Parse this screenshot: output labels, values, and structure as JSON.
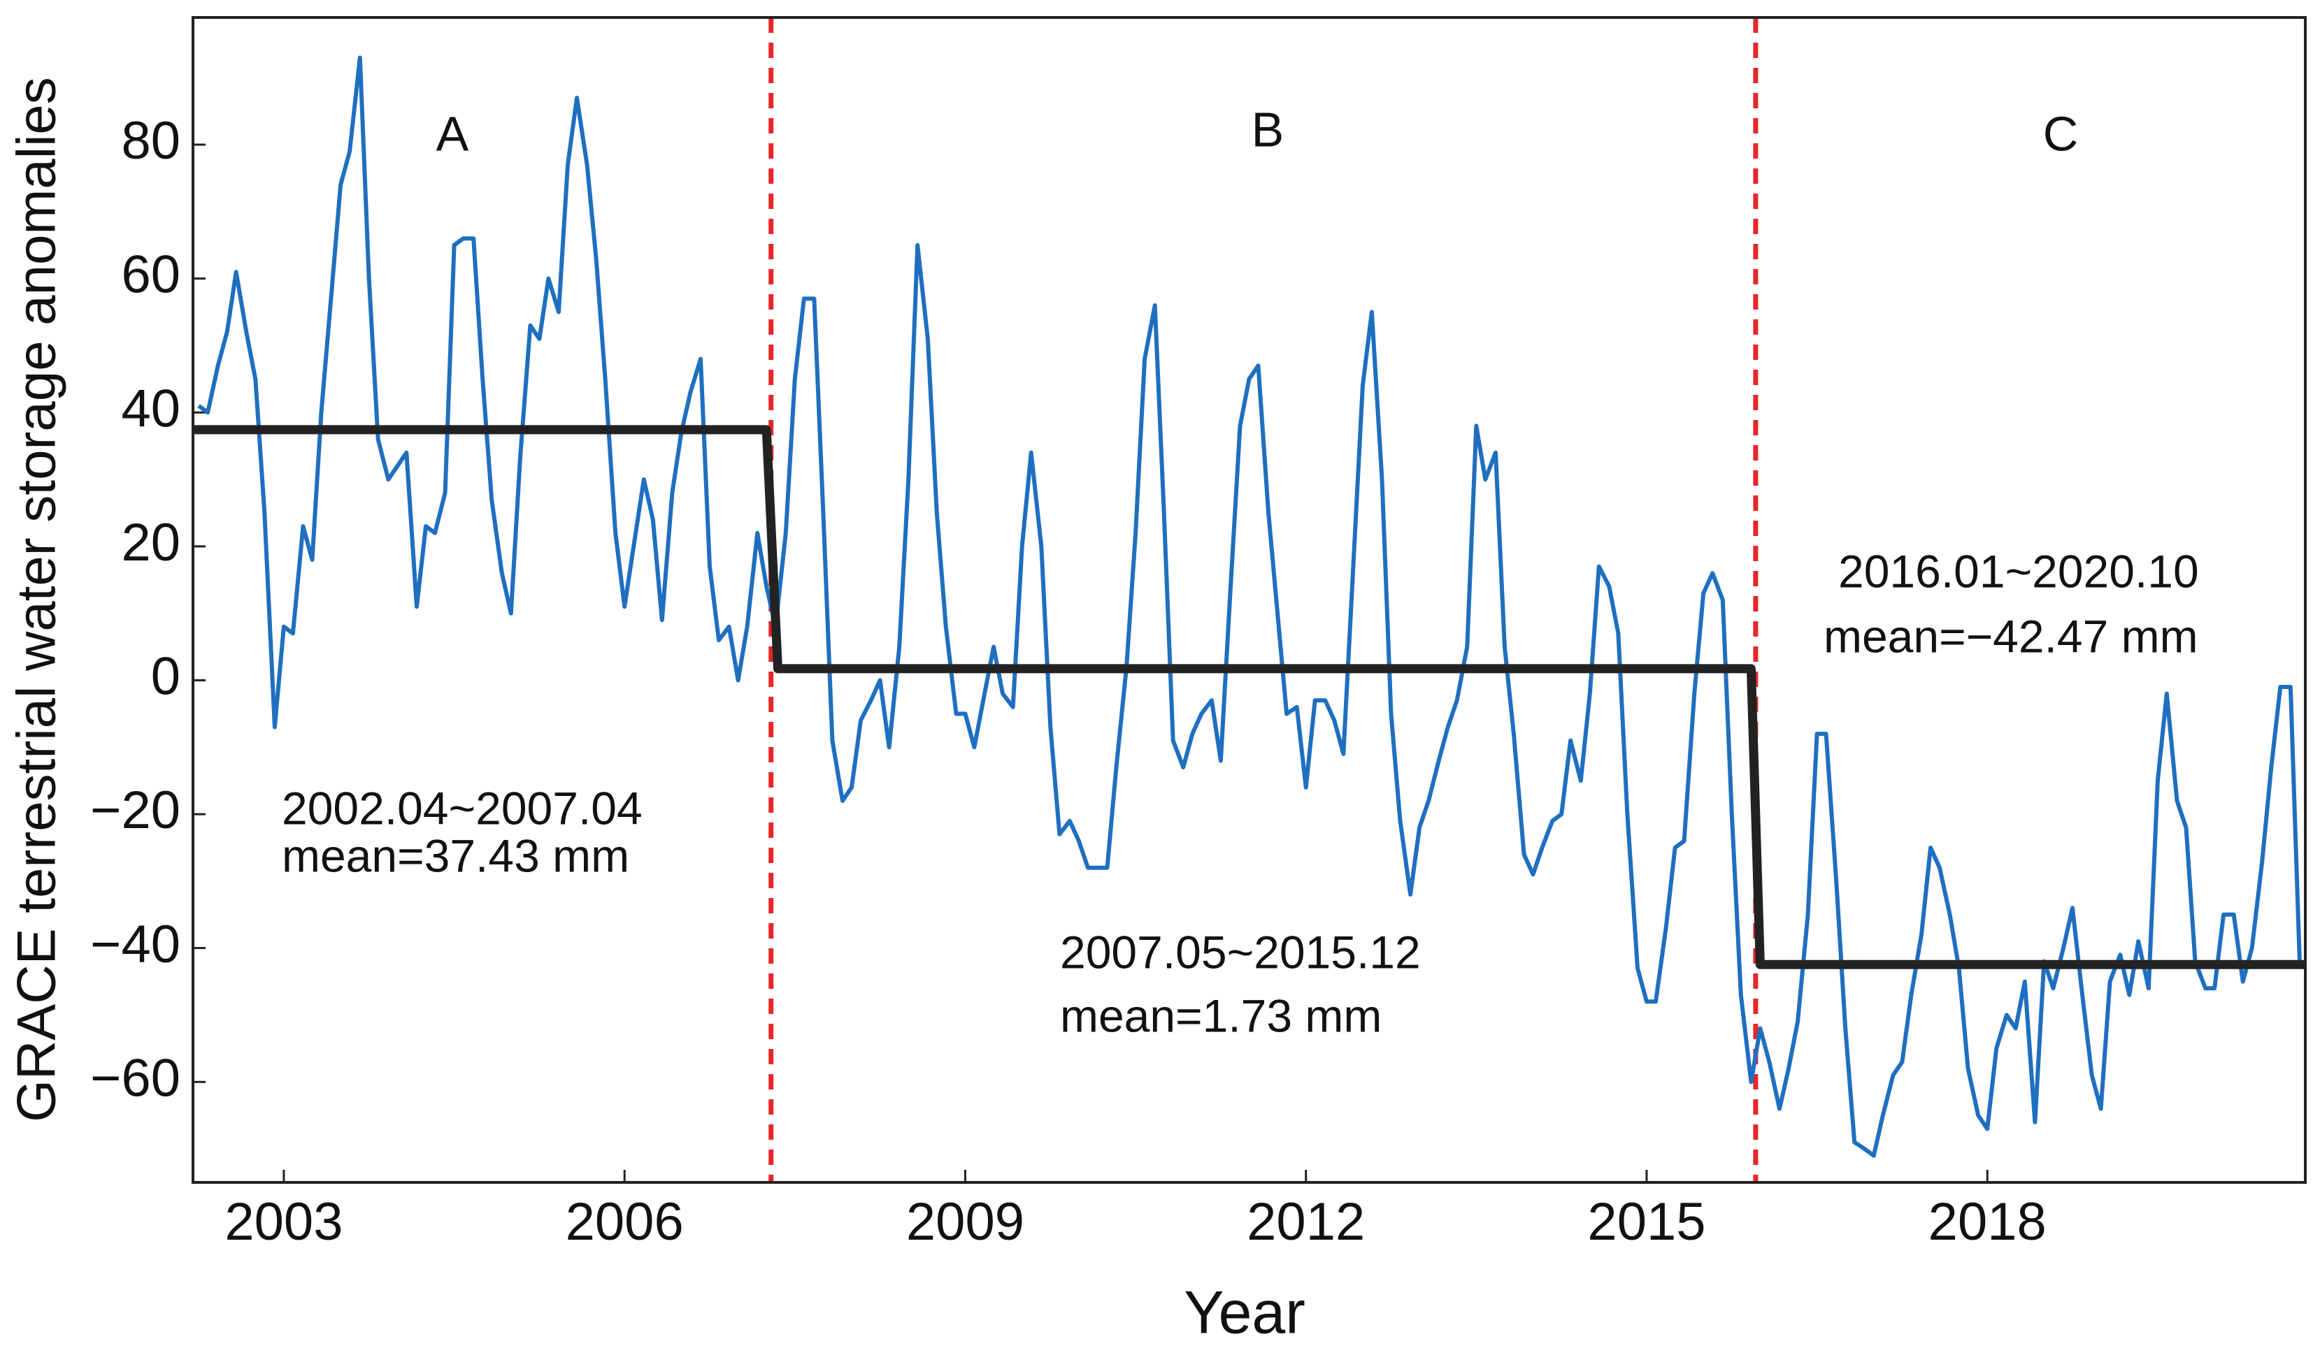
{
  "chart_data": {
    "type": "line",
    "xlabel": "Year",
    "ylabel": "GRACE terrestrial water storage anomalies",
    "xlim": [
      2002.2,
      2020.8
    ],
    "ylim": [
      -75,
      99
    ],
    "xticks": [
      2003,
      2006,
      2009,
      2012,
      2015,
      2018
    ],
    "yticks": [
      {
        "value": -60,
        "label": "−60"
      },
      {
        "value": -40,
        "label": "−40"
      },
      {
        "value": -20,
        "label": "−20"
      },
      0,
      20,
      40,
      60,
      80
    ],
    "annotations": [
      "A",
      "B",
      "C",
      "2002.04~2007.04",
      "mean=37.43 mm",
      "2007.05~2015.12",
      "mean=1.73 mm",
      "2016.01~2020.10",
      "mean=−42.47 mm"
    ],
    "vlines": {
      "color": "#e8262a",
      "x": [
        2007.29,
        2015.96
      ]
    },
    "series": [
      {
        "color": "#1f6fc0",
        "x": [
          2002.25,
          2002.33,
          2002.42,
          2002.5,
          2002.58,
          2002.67,
          2002.75,
          2002.83,
          2002.92,
          2003.0,
          2003.08,
          2003.17,
          2003.25,
          2003.33,
          2003.42,
          2003.5,
          2003.58,
          2003.67,
          2003.75,
          2003.83,
          2003.92,
          2004.0,
          2004.08,
          2004.17,
          2004.25,
          2004.33,
          2004.42,
          2004.5,
          2004.58,
          2004.67,
          2004.75,
          2004.83,
          2004.92,
          2005.0,
          2005.08,
          2005.17,
          2005.25,
          2005.33,
          2005.42,
          2005.5,
          2005.58,
          2005.67,
          2005.75,
          2005.83,
          2005.92,
          2006.0,
          2006.08,
          2006.17,
          2006.25,
          2006.33,
          2006.42,
          2006.5,
          2006.58,
          2006.67,
          2006.75,
          2006.83,
          2006.92,
          2007.0,
          2007.08,
          2007.17,
          2007.25,
          2007.33,
          2007.42,
          2007.5,
          2007.58,
          2007.67,
          2007.75,
          2007.83,
          2007.92,
          2008.0,
          2008.08,
          2008.17,
          2008.25,
          2008.33,
          2008.42,
          2008.5,
          2008.58,
          2008.67,
          2008.75,
          2008.83,
          2008.92,
          2009.0,
          2009.08,
          2009.17,
          2009.25,
          2009.33,
          2009.42,
          2009.5,
          2009.58,
          2009.67,
          2009.75,
          2009.83,
          2009.92,
          2010.0,
          2010.08,
          2010.17,
          2010.25,
          2010.33,
          2010.42,
          2010.5,
          2010.58,
          2010.67,
          2010.75,
          2010.83,
          2010.92,
          2011.0,
          2011.08,
          2011.17,
          2011.25,
          2011.33,
          2011.42,
          2011.5,
          2011.58,
          2011.67,
          2011.75,
          2011.83,
          2011.92,
          2012.0,
          2012.08,
          2012.17,
          2012.25,
          2012.33,
          2012.42,
          2012.5,
          2012.58,
          2012.67,
          2012.75,
          2012.83,
          2012.92,
          2013.0,
          2013.08,
          2013.17,
          2013.25,
          2013.33,
          2013.42,
          2013.5,
          2013.58,
          2013.67,
          2013.75,
          2013.83,
          2013.92,
          2014.0,
          2014.08,
          2014.17,
          2014.25,
          2014.33,
          2014.42,
          2014.5,
          2014.58,
          2014.67,
          2014.75,
          2014.83,
          2014.92,
          2015.0,
          2015.08,
          2015.17,
          2015.25,
          2015.33,
          2015.42,
          2015.5,
          2015.58,
          2015.67,
          2015.75,
          2015.83,
          2015.92,
          2016.0,
          2016.08,
          2016.17,
          2016.25,
          2016.33,
          2016.42,
          2016.5,
          2016.58,
          2016.67,
          2016.75,
          2016.83,
          2016.92,
          2017.0,
          2017.08,
          2017.17,
          2017.25,
          2017.33,
          2017.42,
          2017.5,
          2017.58,
          2017.67,
          2017.75,
          2017.83,
          2017.92,
          2018.0,
          2018.08,
          2018.17,
          2018.25,
          2018.33,
          2018.42,
          2018.5,
          2018.58,
          2018.67,
          2018.75,
          2018.83,
          2018.92,
          2019.0,
          2019.08,
          2019.17,
          2019.25,
          2019.33,
          2019.42,
          2019.5,
          2019.58,
          2019.67,
          2019.75,
          2019.83,
          2019.92,
          2020.0,
          2020.08,
          2020.17,
          2020.25,
          2020.33,
          2020.42,
          2020.5,
          2020.58,
          2020.67,
          2020.75
        ],
        "values": [
          41,
          40,
          47,
          52,
          61,
          52,
          45,
          25,
          -7,
          8,
          7,
          23,
          18,
          40,
          58,
          74,
          79,
          93,
          60,
          36,
          30,
          32,
          34,
          11,
          23,
          22,
          28,
          65,
          66,
          66,
          45,
          27,
          16,
          10,
          33,
          53,
          51,
          60,
          55,
          77,
          87,
          77,
          63,
          45,
          22,
          11,
          20,
          30,
          24,
          9,
          28,
          37,
          43,
          48,
          17,
          6,
          8,
          0,
          8,
          22,
          14,
          8,
          22,
          45,
          57,
          57,
          25,
          -9,
          -18,
          -16,
          -6,
          -3,
          0,
          -10,
          5,
          30,
          65,
          51,
          25,
          8,
          -5,
          -5,
          -10,
          -2,
          5,
          -2,
          -4,
          20,
          34,
          20,
          -7,
          -23,
          -21,
          -24,
          -28,
          -28,
          -28,
          -13,
          2,
          22,
          48,
          56,
          25,
          -9,
          -13,
          -8,
          -5,
          -3,
          -12,
          12,
          38,
          45,
          47,
          25,
          10,
          -5,
          -4,
          -16,
          -3,
          -3,
          -6,
          -11,
          18,
          44,
          55,
          30,
          -5,
          -21,
          -32,
          -22,
          -18,
          -12,
          -7,
          -3,
          5,
          38,
          30,
          34,
          5,
          -8,
          -26,
          -29,
          -25,
          -21,
          -20,
          -9,
          -15,
          -2,
          17,
          14,
          7,
          -20,
          -43,
          -48,
          -48,
          -37,
          -25,
          -24,
          -2,
          13,
          16,
          12,
          -20,
          -47,
          -60,
          -52,
          -57,
          -64,
          -58,
          -51,
          -35,
          -8,
          -8,
          -30,
          -52,
          -69,
          -70,
          -71,
          -65,
          -59,
          -57,
          -47,
          -38,
          -25,
          -28,
          -35,
          -43,
          -58,
          -65,
          -67,
          -55,
          -50,
          -52,
          -45,
          -66,
          -42,
          -46,
          -40,
          -34,
          -46,
          -59,
          -64,
          -45,
          -41,
          -47,
          -39,
          -46,
          -15,
          -2,
          -18,
          -22,
          -42,
          -46,
          -46,
          -35,
          -35,
          -45,
          -40,
          -27,
          -13,
          -1,
          -1,
          -42
        ]
      },
      {
        "color": "#222222",
        "x": [
          2002.2,
          2007.25,
          2007.35,
          2015.92,
          2016.0,
          2020.8
        ],
        "values": [
          37.43,
          37.43,
          1.73,
          1.73,
          -42.47,
          -42.47
        ]
      }
    ]
  }
}
